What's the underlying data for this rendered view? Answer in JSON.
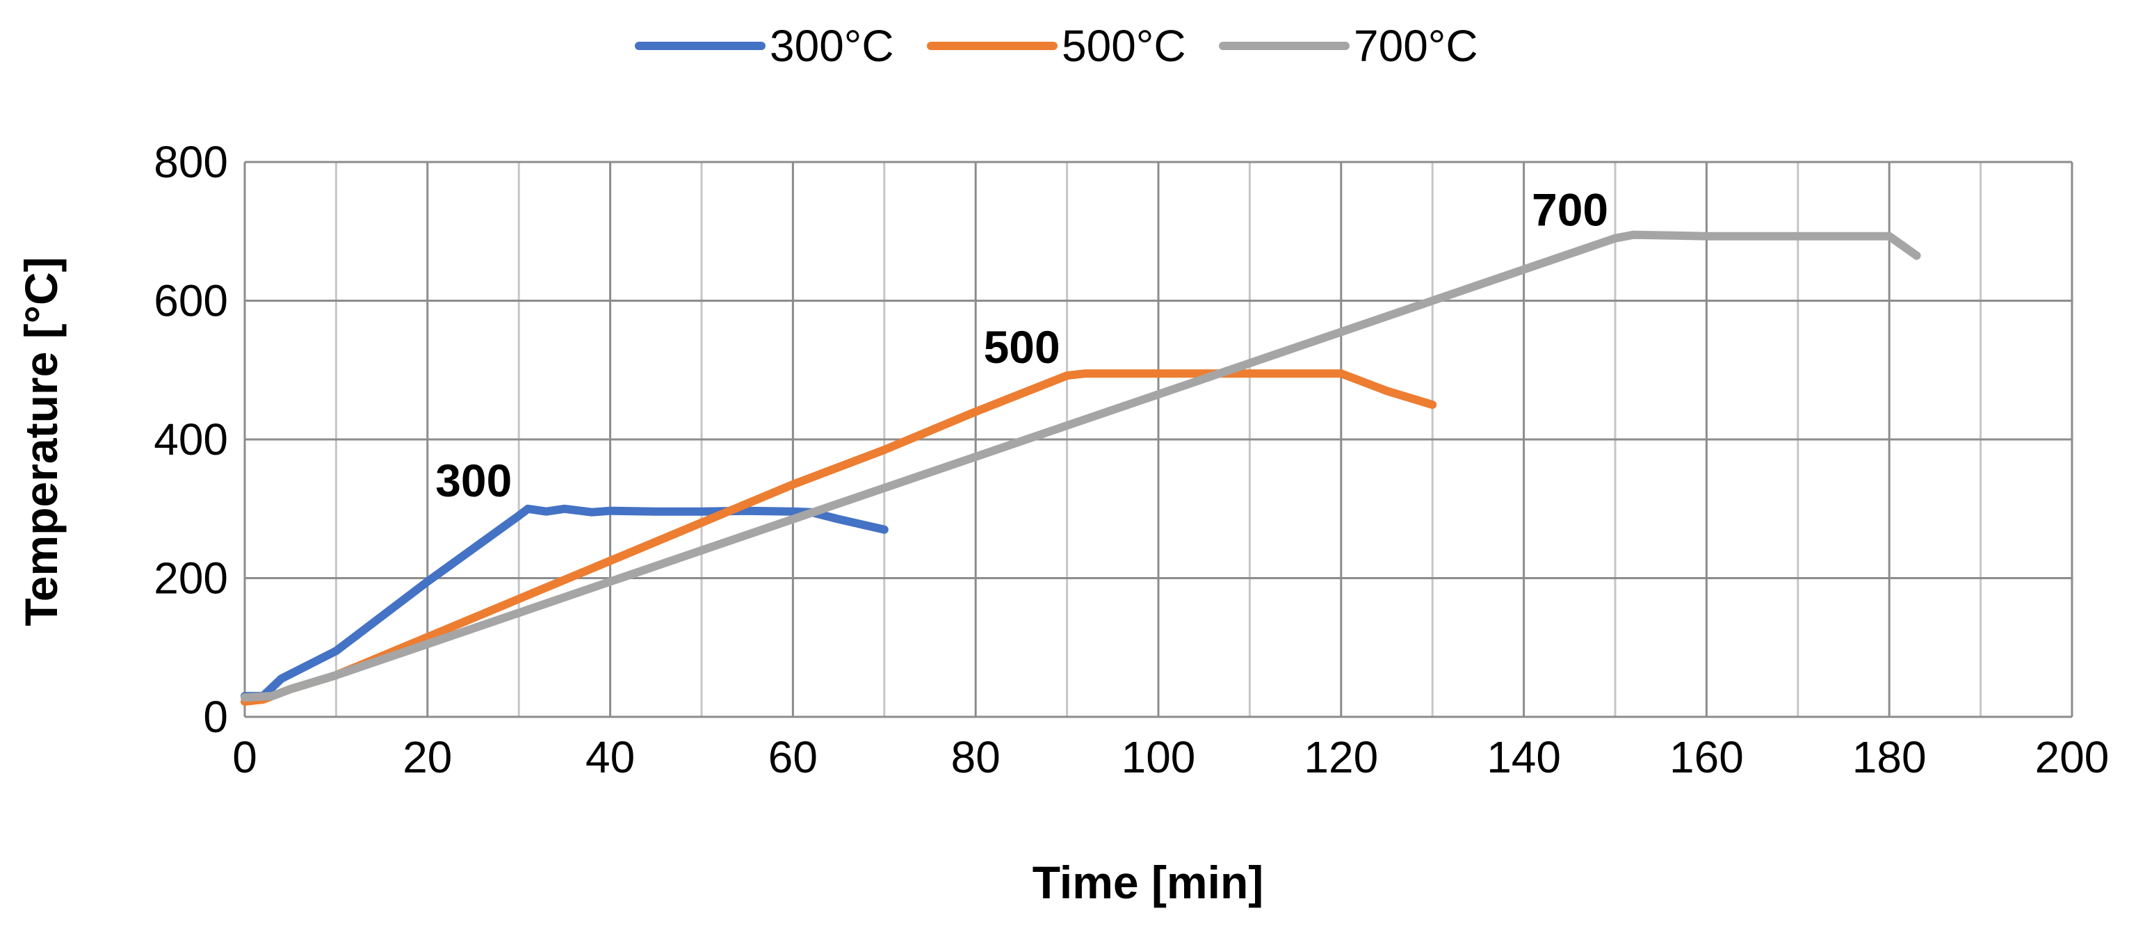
{
  "chart_data": {
    "type": "line",
    "title": "",
    "xlabel": "Time [min]",
    "ylabel": "Temperature [°C]",
    "xlim": [
      0,
      200
    ],
    "ylim": [
      0,
      800
    ],
    "xticks": [
      0,
      20,
      40,
      60,
      80,
      100,
      120,
      140,
      160,
      180,
      200
    ],
    "yticks": [
      0,
      200,
      400,
      600,
      800
    ],
    "x_minor_grid_step": 10,
    "grid": true,
    "legend_position": "top-center",
    "series": [
      {
        "name": "300°C",
        "color": "#4472C4",
        "x": [
          0,
          2,
          4,
          10,
          20,
          30,
          31,
          33,
          35,
          38,
          40,
          45,
          50,
          55,
          60,
          62,
          65,
          70
        ],
        "y": [
          30,
          30,
          55,
          95,
          195,
          290,
          300,
          296,
          300,
          295,
          297,
          296,
          296,
          297,
          296,
          295,
          285,
          270
        ]
      },
      {
        "name": "500°C",
        "color": "#ED7D31",
        "x": [
          0,
          2,
          5,
          10,
          20,
          30,
          40,
          50,
          60,
          70,
          80,
          90,
          92,
          100,
          110,
          120,
          125,
          130
        ],
        "y": [
          22,
          25,
          40,
          60,
          115,
          170,
          225,
          280,
          335,
          385,
          440,
          492,
          495,
          495,
          495,
          495,
          470,
          450
        ]
      },
      {
        "name": "700°C",
        "color": "#A5A5A5",
        "x": [
          0,
          3,
          5,
          10,
          20,
          30,
          40,
          50,
          60,
          70,
          80,
          90,
          100,
          110,
          120,
          130,
          140,
          150,
          152,
          160,
          170,
          180,
          183
        ],
        "y": [
          28,
          30,
          40,
          60,
          105,
          150,
          195,
          240,
          285,
          330,
          375,
          420,
          465,
          510,
          555,
          600,
          645,
          690,
          695,
          693,
          693,
          693,
          665
        ]
      }
    ],
    "annotations": [
      {
        "text": "300",
        "x": 30,
        "y": 300,
        "anchor": "above-left"
      },
      {
        "text": "500",
        "x": 90,
        "y": 492,
        "anchor": "above-left"
      },
      {
        "text": "700",
        "x": 150,
        "y": 690,
        "anchor": "above-left"
      }
    ]
  }
}
